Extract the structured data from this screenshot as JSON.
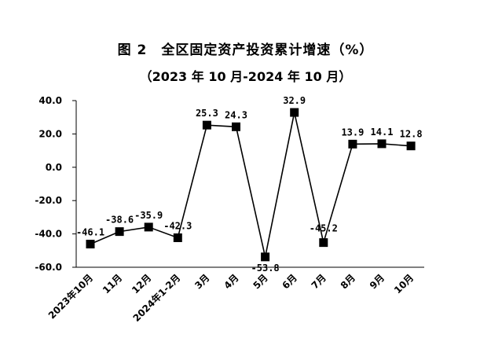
{
  "title": "图 2　全区固定资产投资累计增速（%）",
  "subtitle": "（2023 年 10 月-2024 年 10 月）",
  "chart_data": {
    "type": "line",
    "title": "图 2　全区固定资产投资累计增速（%）",
    "subtitle": "（2023 年 10 月-2024 年 10 月）",
    "categories": [
      "2023年10月",
      "11月",
      "12月",
      "2024年1-2月",
      "3月",
      "4月",
      "5月",
      "6月",
      "7月",
      "8月",
      "9月",
      "10月"
    ],
    "series": [
      {
        "values": [
          -46.1,
          -38.6,
          -35.9,
          -42.3,
          25.3,
          24.3,
          -53.8,
          32.9,
          -45.2,
          13.9,
          14.1,
          12.8
        ]
      }
    ],
    "data_labels": [
      "-46.1",
      "-38.6",
      "-35.9",
      "-42.3",
      "25.3",
      "24.3",
      "-53.8",
      "32.9",
      "-45.2",
      "13.9",
      "14.1",
      "12.8"
    ],
    "yticks": [
      40,
      20,
      0,
      -20,
      -40,
      -60
    ],
    "ytick_labels": [
      "40.0",
      "20.0",
      "0.0",
      "-20.0",
      "-40.0",
      "-60.0"
    ],
    "ylim": [
      -60,
      40
    ],
    "xlabel": "",
    "ylabel": "",
    "grid": false,
    "legend": "none",
    "line_color": "#000000",
    "marker": "square"
  }
}
